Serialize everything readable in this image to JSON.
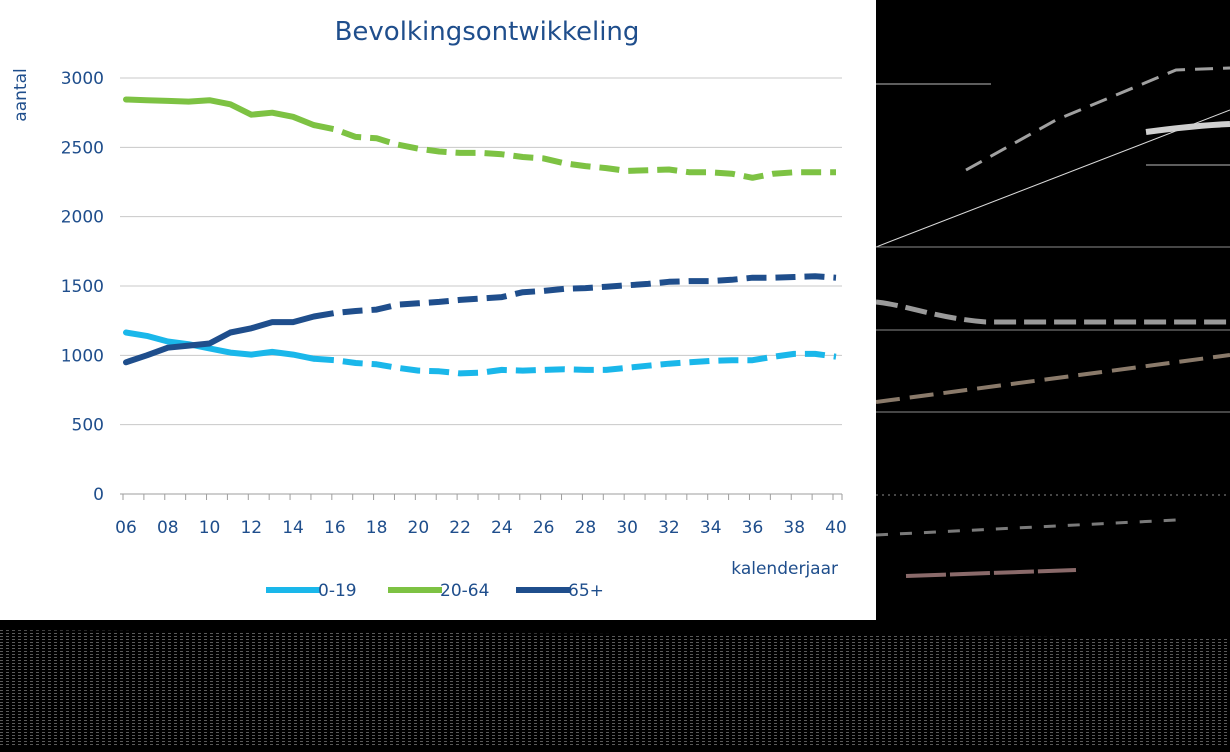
{
  "chart_data": {
    "type": "line",
    "title": "Bevolkingsontwikkeling",
    "xlabel": "kalenderjaar",
    "ylabel": "aantal",
    "ylim": [
      0,
      3000
    ],
    "yticks": [
      0,
      500,
      1000,
      1500,
      2000,
      2500,
      3000
    ],
    "x": [
      6,
      7,
      8,
      9,
      10,
      11,
      12,
      13,
      14,
      15,
      16,
      17,
      18,
      19,
      20,
      21,
      22,
      23,
      24,
      25,
      26,
      27,
      28,
      29,
      30,
      31,
      32,
      33,
      34,
      35,
      36,
      37,
      38,
      39,
      40
    ],
    "xtick_labels": [
      "06",
      "08",
      "10",
      "12",
      "14",
      "16",
      "18",
      "20",
      "22",
      "24",
      "26",
      "28",
      "30",
      "32",
      "34",
      "36",
      "38",
      "40"
    ],
    "projection_from_x": 15,
    "grid": "horizontal",
    "legend_position": "bottom",
    "series": [
      {
        "name": "0-19",
        "color": "#1ab7ea",
        "values": [
          1165,
          1140,
          1100,
          1080,
          1050,
          1020,
          1005,
          1025,
          1005,
          975,
          965,
          945,
          935,
          910,
          890,
          885,
          870,
          875,
          895,
          890,
          895,
          900,
          895,
          895,
          910,
          925,
          940,
          950,
          960,
          965,
          965,
          990,
          1010,
          1010,
          990
        ]
      },
      {
        "name": "20-64",
        "color": "#7dc243",
        "values": [
          2845,
          2840,
          2835,
          2830,
          2840,
          2810,
          2735,
          2750,
          2720,
          2660,
          2630,
          2575,
          2565,
          2520,
          2490,
          2470,
          2460,
          2460,
          2450,
          2430,
          2420,
          2385,
          2365,
          2350,
          2330,
          2335,
          2340,
          2320,
          2320,
          2310,
          2280,
          2310,
          2320,
          2320,
          2320
        ]
      },
      {
        "name": "65+",
        "color": "#1f4e8c",
        "values": [
          950,
          1000,
          1055,
          1070,
          1085,
          1165,
          1195,
          1240,
          1240,
          1280,
          1305,
          1320,
          1330,
          1365,
          1375,
          1385,
          1400,
          1410,
          1420,
          1455,
          1465,
          1480,
          1485,
          1495,
          1505,
          1515,
          1530,
          1535,
          1535,
          1545,
          1560,
          1560,
          1565,
          1570,
          1560
        ]
      }
    ]
  }
}
